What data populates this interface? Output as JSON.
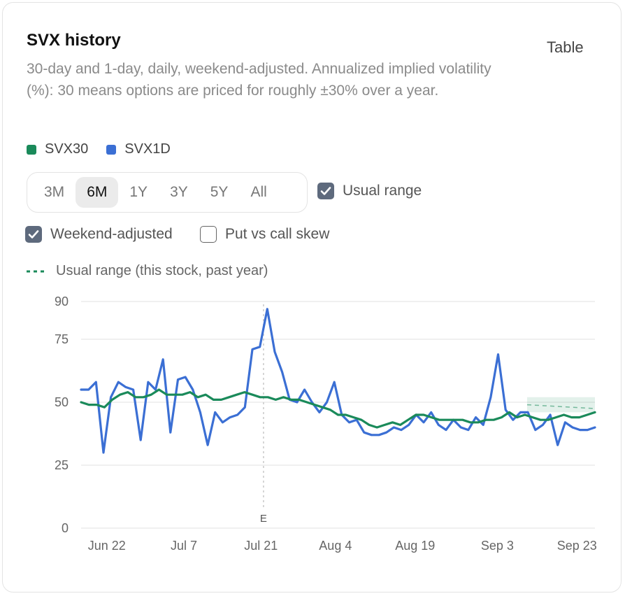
{
  "header": {
    "title": "SVX history",
    "table_label": "Table",
    "subtitle": "30-day and 1-day, daily, weekend-adjusted. Annualized implied volatility (%): 30 means options are priced for roughly ±30% over a year."
  },
  "legend": [
    {
      "label": "SVX30",
      "color": "#1a8a5a"
    },
    {
      "label": "SVX1D",
      "color": "#3b6fd4"
    }
  ],
  "ranges": {
    "options": [
      "3M",
      "6M",
      "1Y",
      "3Y",
      "5Y",
      "All"
    ],
    "selected": "6M"
  },
  "toggles": {
    "usual_range": {
      "label": "Usual range",
      "checked": true
    },
    "weekend_adjusted": {
      "label": "Weekend-adjusted",
      "checked": true
    },
    "skew": {
      "label": "Put vs call skew",
      "checked": false
    }
  },
  "usual_range_note": "Usual range (this stock, past year)",
  "chart_data": {
    "type": "line",
    "yticks": [
      0,
      25,
      50,
      75,
      90
    ],
    "ylim": [
      0,
      90
    ],
    "xlim": [
      0,
      100
    ],
    "xticks": [
      {
        "label": "Jun 22",
        "pos": 5
      },
      {
        "label": "Jul 7",
        "pos": 20
      },
      {
        "label": "Jul 21",
        "pos": 35
      },
      {
        "label": "Aug 4",
        "pos": 49.5
      },
      {
        "label": "Aug 19",
        "pos": 65
      },
      {
        "label": "Sep 3",
        "pos": 81
      },
      {
        "label": "Sep 23",
        "pos": 96.5
      }
    ],
    "event": {
      "label": "E",
      "pos": 35.5
    },
    "usual_range_band": {
      "x_start": 86.8,
      "x_end": 100,
      "low": 46,
      "high": 52,
      "mid": [
        49,
        47.5
      ]
    },
    "series": [
      {
        "name": "SVX30",
        "color": "#1a8a5a",
        "values": [
          50,
          49,
          49,
          48,
          51,
          53,
          54,
          52,
          52,
          53,
          55,
          53,
          53,
          53,
          54,
          52,
          53,
          51,
          51,
          52,
          53,
          54,
          53,
          52,
          52,
          51,
          52,
          51,
          51,
          50,
          49,
          48,
          47,
          45,
          45,
          44,
          43,
          41,
          40,
          41,
          42,
          41,
          43,
          45,
          45,
          44,
          43,
          43,
          43,
          43,
          42,
          42,
          43,
          43,
          44,
          46,
          44,
          45,
          44,
          43,
          43,
          44,
          45,
          44,
          44,
          45,
          46
        ]
      },
      {
        "name": "SVX1D",
        "color": "#3b6fd4",
        "values": [
          55,
          55,
          58,
          30,
          52,
          58,
          56,
          55,
          35,
          58,
          55,
          67,
          38,
          59,
          60,
          55,
          46,
          33,
          46,
          42,
          44,
          45,
          48,
          71,
          72,
          87,
          70,
          62,
          51,
          50,
          55,
          50,
          46,
          50,
          58,
          45,
          42,
          43,
          38,
          37,
          37,
          38,
          40,
          39,
          41,
          45,
          42,
          46,
          41,
          39,
          43,
          40,
          39,
          44,
          41,
          52,
          69,
          47,
          43,
          46,
          46,
          39,
          41,
          45,
          33,
          42,
          40,
          39,
          39,
          40
        ]
      }
    ]
  }
}
